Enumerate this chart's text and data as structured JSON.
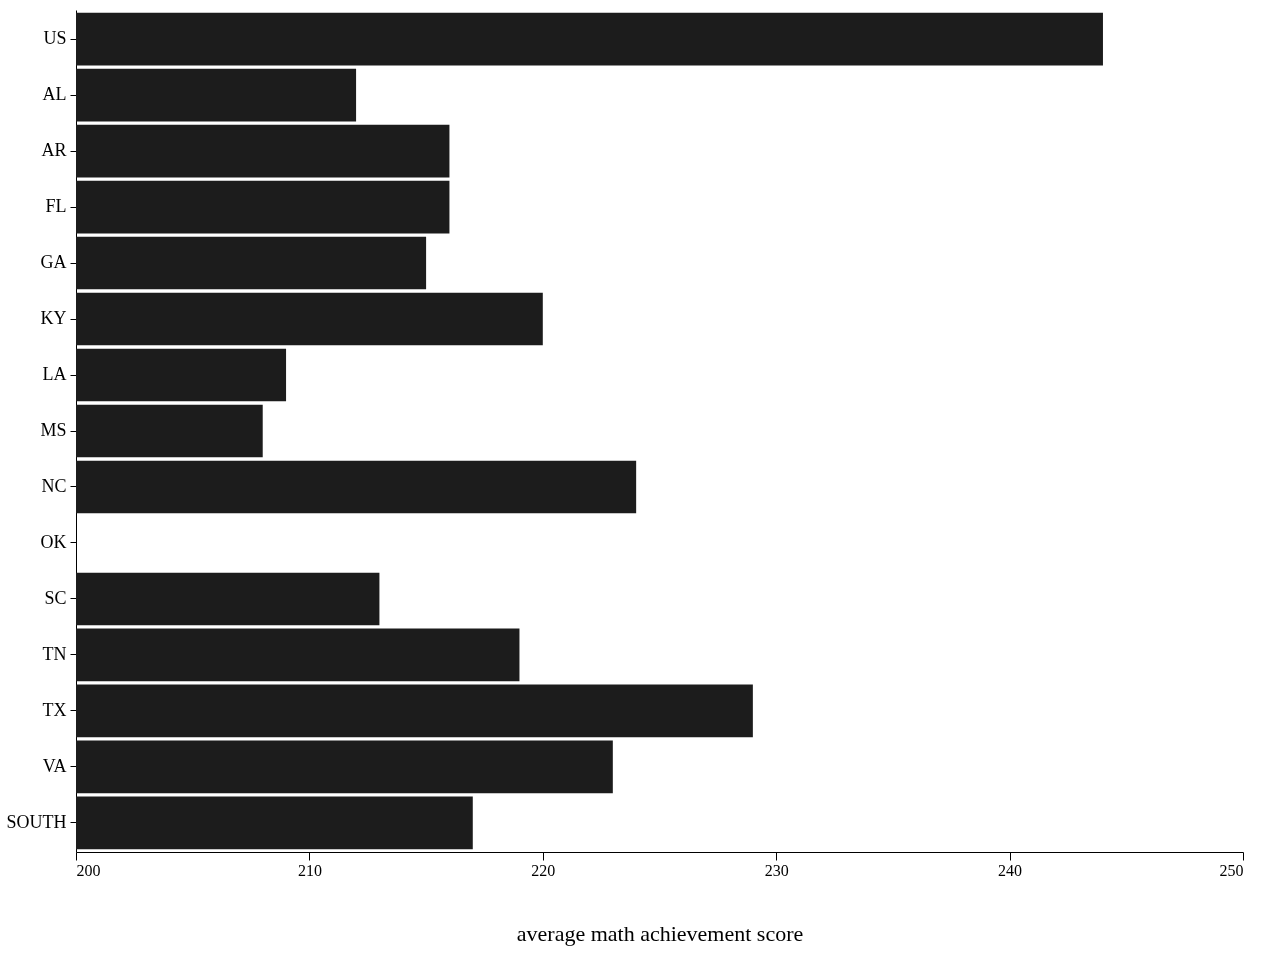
{
  "chart_data": {
    "type": "bar",
    "orientation": "horizontal",
    "xlabel": "average math achievement score",
    "categories": [
      "US",
      "AL",
      "AR",
      "FL",
      "GA",
      "KY",
      "LA",
      "MS",
      "NC",
      "OK",
      "SC",
      "TN",
      "TX",
      "VA",
      "SOUTH"
    ],
    "values": [
      244,
      212,
      216,
      216,
      215,
      220,
      209,
      208,
      224,
      null,
      213,
      219,
      229,
      223,
      217
    ],
    "color": "#1c1c1c",
    "xlim": [
      200,
      250
    ],
    "xticks": [
      200,
      210,
      220,
      230,
      240,
      250
    ],
    "grid": false
  }
}
